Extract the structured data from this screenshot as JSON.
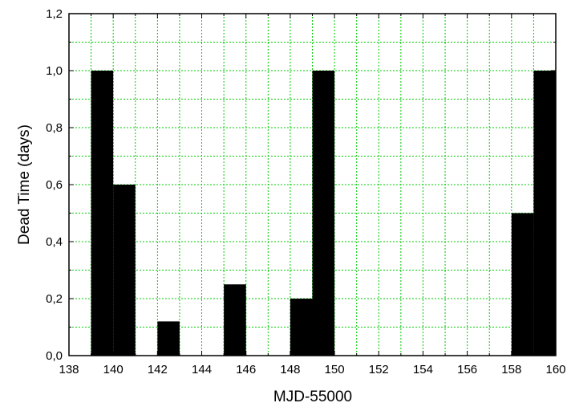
{
  "chart_data": {
    "type": "bar",
    "title": "",
    "xlabel": "MJD-55000",
    "ylabel": "Dead Time (days)",
    "xlim": [
      138,
      160
    ],
    "ylim": [
      0,
      1.2
    ],
    "x_ticks": [
      "138",
      "140",
      "142",
      "144",
      "146",
      "148",
      "150",
      "152",
      "154",
      "156",
      "158",
      "160"
    ],
    "y_ticks": [
      "0,0",
      "0,2",
      "0,4",
      "0,6",
      "0,8",
      "1,0",
      "1,2"
    ],
    "bar_width": 1,
    "bars": [
      {
        "x": 139,
        "value": 1.0
      },
      {
        "x": 140,
        "value": 0.6
      },
      {
        "x": 142,
        "value": 0.12
      },
      {
        "x": 145,
        "value": 0.25
      },
      {
        "x": 148,
        "value": 0.2
      },
      {
        "x": 149,
        "value": 1.0
      },
      {
        "x": 158,
        "value": 0.5
      },
      {
        "x": 159,
        "value": 1.0
      }
    ],
    "bar_color": "#000000",
    "grid": true,
    "grid_color": "#00cc00",
    "grid_style": "dotted"
  }
}
